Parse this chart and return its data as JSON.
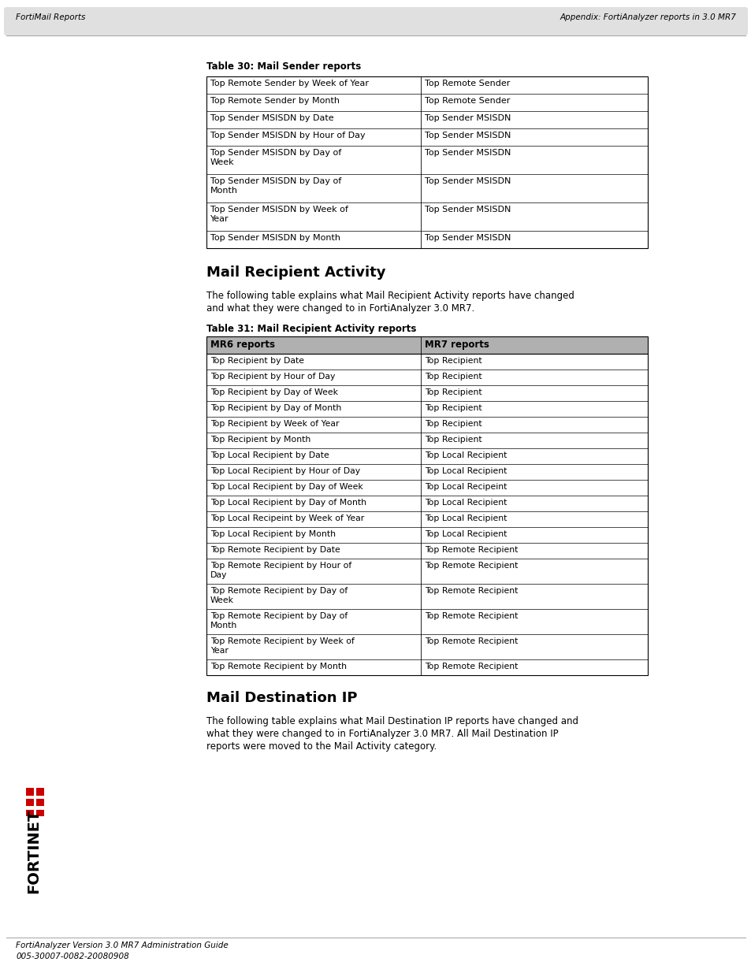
{
  "header_left": "FortiMail Reports",
  "header_right": "Appendix: FortiAnalyzer reports in 3.0 MR7",
  "footer_line1": "FortiAnalyzer Version 3.0 MR7 Administration Guide",
  "footer_line2": "005-30007-0082-20080908",
  "table30_title": "Table 30: Mail Sender reports",
  "table30_rows": [
    [
      "Top Remote Sender by Week of Year",
      "Top Remote Sender"
    ],
    [
      "Top Remote Sender by Month",
      "Top Remote Sender"
    ],
    [
      "Top Sender MSISDN by Date",
      "Top Sender MSISDN"
    ],
    [
      "Top Sender MSISDN by Hour of Day",
      "Top Sender MSISDN"
    ],
    [
      "Top Sender MSISDN by Day of\nWeek",
      "Top Sender MSISDN"
    ],
    [
      "Top Sender MSISDN by Day of\nMonth",
      "Top Sender MSISDN"
    ],
    [
      "Top Sender MSISDN by Week of\nYear",
      "Top Sender MSISDN"
    ],
    [
      "Top Sender MSISDN by Month",
      "Top Sender MSISDN"
    ]
  ],
  "section1_title": "Mail Recipient Activity",
  "section1_body": "The following table explains what Mail Recipient Activity reports have changed\nand what they were changed to in FortiAnalyzer 3.0 MR7.",
  "table31_title": "Table 31: Mail Recipient Activity reports",
  "table31_header": [
    "MR6 reports",
    "MR7 reports"
  ],
  "table31_rows": [
    [
      "Top Recipient by Date",
      "Top Recipient"
    ],
    [
      "Top Recipient by Hour of Day",
      "Top Recipient"
    ],
    [
      "Top Recipient by Day of Week",
      "Top Recipient"
    ],
    [
      "Top Recipient by Day of Month",
      "Top Recipient"
    ],
    [
      "Top Recipient by Week of Year",
      "Top Recipient"
    ],
    [
      "Top Recipient by Month",
      "Top Recipient"
    ],
    [
      "Top Local Recipient by Date",
      "Top Local Recipient"
    ],
    [
      "Top Local Recipient by Hour of Day",
      "Top Local Recipient"
    ],
    [
      "Top Local Recipient by Day of Week",
      "Top Local Recipeint"
    ],
    [
      "Top Local Recipient by Day of Month",
      "Top Local Recipient"
    ],
    [
      "Top Local Recipeint by Week of Year",
      "Top Local Recipient"
    ],
    [
      "Top Local Recipient by Month",
      "Top Local Recipient"
    ],
    [
      "Top Remote Recipient by Date",
      "Top Remote Recipient"
    ],
    [
      "Top Remote Recipient by Hour of\nDay",
      "Top Remote Recipient"
    ],
    [
      "Top Remote Recipient by Day of\nWeek",
      "Top Remote Recipient"
    ],
    [
      "Top Remote Recipient by Day of\nMonth",
      "Top Remote Recipient"
    ],
    [
      "Top Remote Recipient by Week of\nYear",
      "Top Remote Recipient"
    ],
    [
      "Top Remote Recipient by Month",
      "Top Remote Recipient"
    ]
  ],
  "section2_title": "Mail Destination IP",
  "section2_body": "The following table explains what Mail Destination IP reports have changed and\nwhat they were changed to in FortiAnalyzer 3.0 MR7. All Mail Destination IP\nreports were moved to the Mail Activity category.",
  "bg_color": "#ffffff"
}
